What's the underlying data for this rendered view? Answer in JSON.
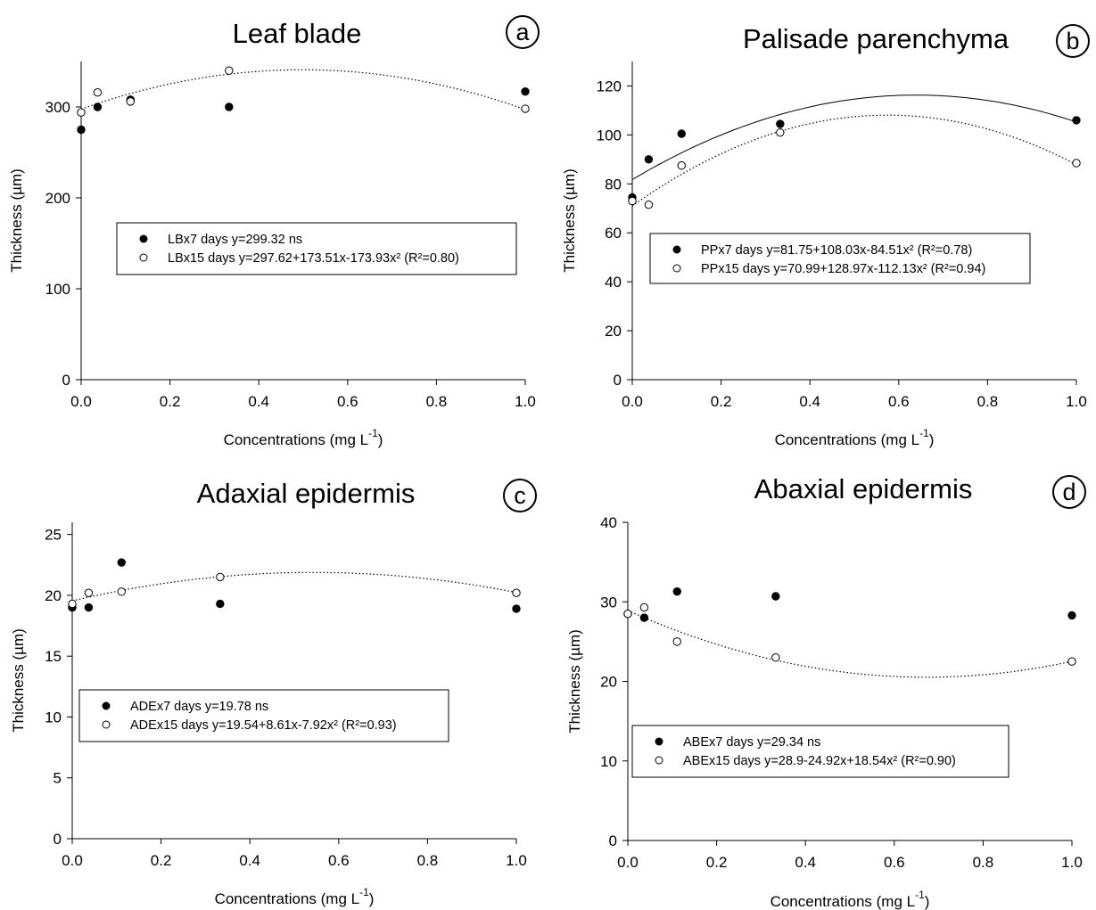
{
  "chart_data": [
    {
      "type": "scatter",
      "panel": "a",
      "title": "Leaf blade",
      "xlabel": "Concentrations (mg L",
      "xlabel_sup": "-1",
      "xlabel_end": ")",
      "ylabel": "Thickness (µm)",
      "xlim": [
        0,
        1
      ],
      "ylim": [
        0,
        350
      ],
      "xticks": [
        "0.0",
        "0.2",
        "0.4",
        "0.6",
        "0.8",
        "1.0"
      ],
      "yticks": [
        0,
        100,
        200,
        300
      ],
      "x": [
        0,
        0.037,
        0.111,
        0.333,
        1.0
      ],
      "series": [
        {
          "name": "LBx7 days y=299.32 ns",
          "marker": "filled",
          "values": [
            275,
            300,
            308,
            300,
            317
          ],
          "fit": null
        },
        {
          "name": "LBx15 days y=297.62+173.51x-173.93x² (R²=0.80)",
          "marker": "open",
          "values": [
            294,
            316,
            306,
            340,
            298
          ],
          "fit": [
            297.62,
            173.51,
            -173.93
          ]
        }
      ]
    },
    {
      "type": "scatter",
      "panel": "b",
      "title": "Palisade parenchyma",
      "xlabel": "Concentrations (mg L",
      "xlabel_sup": "-1",
      "xlabel_end": ")",
      "ylabel": "Thickness (µm)",
      "xlim": [
        0,
        1
      ],
      "ylim": [
        0,
        130
      ],
      "xticks": [
        "0.0",
        "0.2",
        "0.4",
        "0.6",
        "0.8",
        "1.0"
      ],
      "yticks": [
        0,
        20,
        40,
        60,
        80,
        100,
        120
      ],
      "x": [
        0,
        0.037,
        0.111,
        0.333,
        1.0
      ],
      "series": [
        {
          "name": "PPx7 days y=81.75+108.03x-84.51x² (R²=0.78)",
          "marker": "filled",
          "values": [
            74.5,
            90,
            100.5,
            104.5,
            106
          ],
          "fit": [
            81.75,
            108.03,
            -84.51
          ],
          "fit_style": "solid"
        },
        {
          "name": "PPx15 days y=70.99+128.97x-112.13x² (R²=0.94)",
          "marker": "open",
          "values": [
            73,
            71.5,
            87.5,
            101,
            88.5
          ],
          "fit": [
            70.99,
            128.97,
            -112.13
          ],
          "fit_style": "dotted"
        }
      ]
    },
    {
      "type": "scatter",
      "panel": "c",
      "title": "Adaxial epidermis",
      "xlabel": "Concentrations (mg L",
      "xlabel_sup": "-1",
      "xlabel_end": ")",
      "ylabel": "Thickness (µm)",
      "xlim": [
        0,
        1
      ],
      "ylim": [
        0,
        26
      ],
      "xticks": [
        "0.0",
        "0.2",
        "0.4",
        "0.6",
        "0.8",
        "1.0"
      ],
      "yticks": [
        0,
        5,
        10,
        15,
        20,
        25
      ],
      "x": [
        0,
        0.037,
        0.111,
        0.333,
        1.0
      ],
      "series": [
        {
          "name": "ADEx7 days y=19.78 ns",
          "marker": "filled",
          "values": [
            19,
            19,
            22.7,
            19.3,
            18.9
          ],
          "fit": null
        },
        {
          "name": "ADEx15 days y=19.54+8.61x-7.92x² (R²=0.93)",
          "marker": "open",
          "values": [
            19.3,
            20.2,
            20.3,
            21.5,
            20.2
          ],
          "fit": [
            19.54,
            8.61,
            -7.92
          ]
        }
      ]
    },
    {
      "type": "scatter",
      "panel": "d",
      "title": "Abaxial epidermis",
      "xlabel": "Concentrations (mg L",
      "xlabel_sup": "-1",
      "xlabel_end": ")",
      "ylabel": "Thickness (µm)",
      "xlim": [
        0,
        1
      ],
      "ylim": [
        0,
        40
      ],
      "xticks": [
        "0.0",
        "0.2",
        "0.4",
        "0.6",
        "0.8",
        "1.0"
      ],
      "yticks": [
        0,
        10,
        20,
        30,
        40
      ],
      "x": [
        0,
        0.037,
        0.111,
        0.333,
        1.0
      ],
      "series": [
        {
          "name": "ABEx7 days y=29.34 ns",
          "marker": "filled",
          "values": [
            28.5,
            28,
            31.3,
            30.7,
            28.3
          ],
          "fit": null
        },
        {
          "name": "ABEx15 days y=28.9-24.92x+18.54x² (R²=0.90)",
          "marker": "open",
          "values": [
            28.5,
            29.3,
            25,
            23,
            22.5
          ],
          "fit": [
            28.9,
            -24.92,
            18.54
          ]
        }
      ]
    }
  ]
}
